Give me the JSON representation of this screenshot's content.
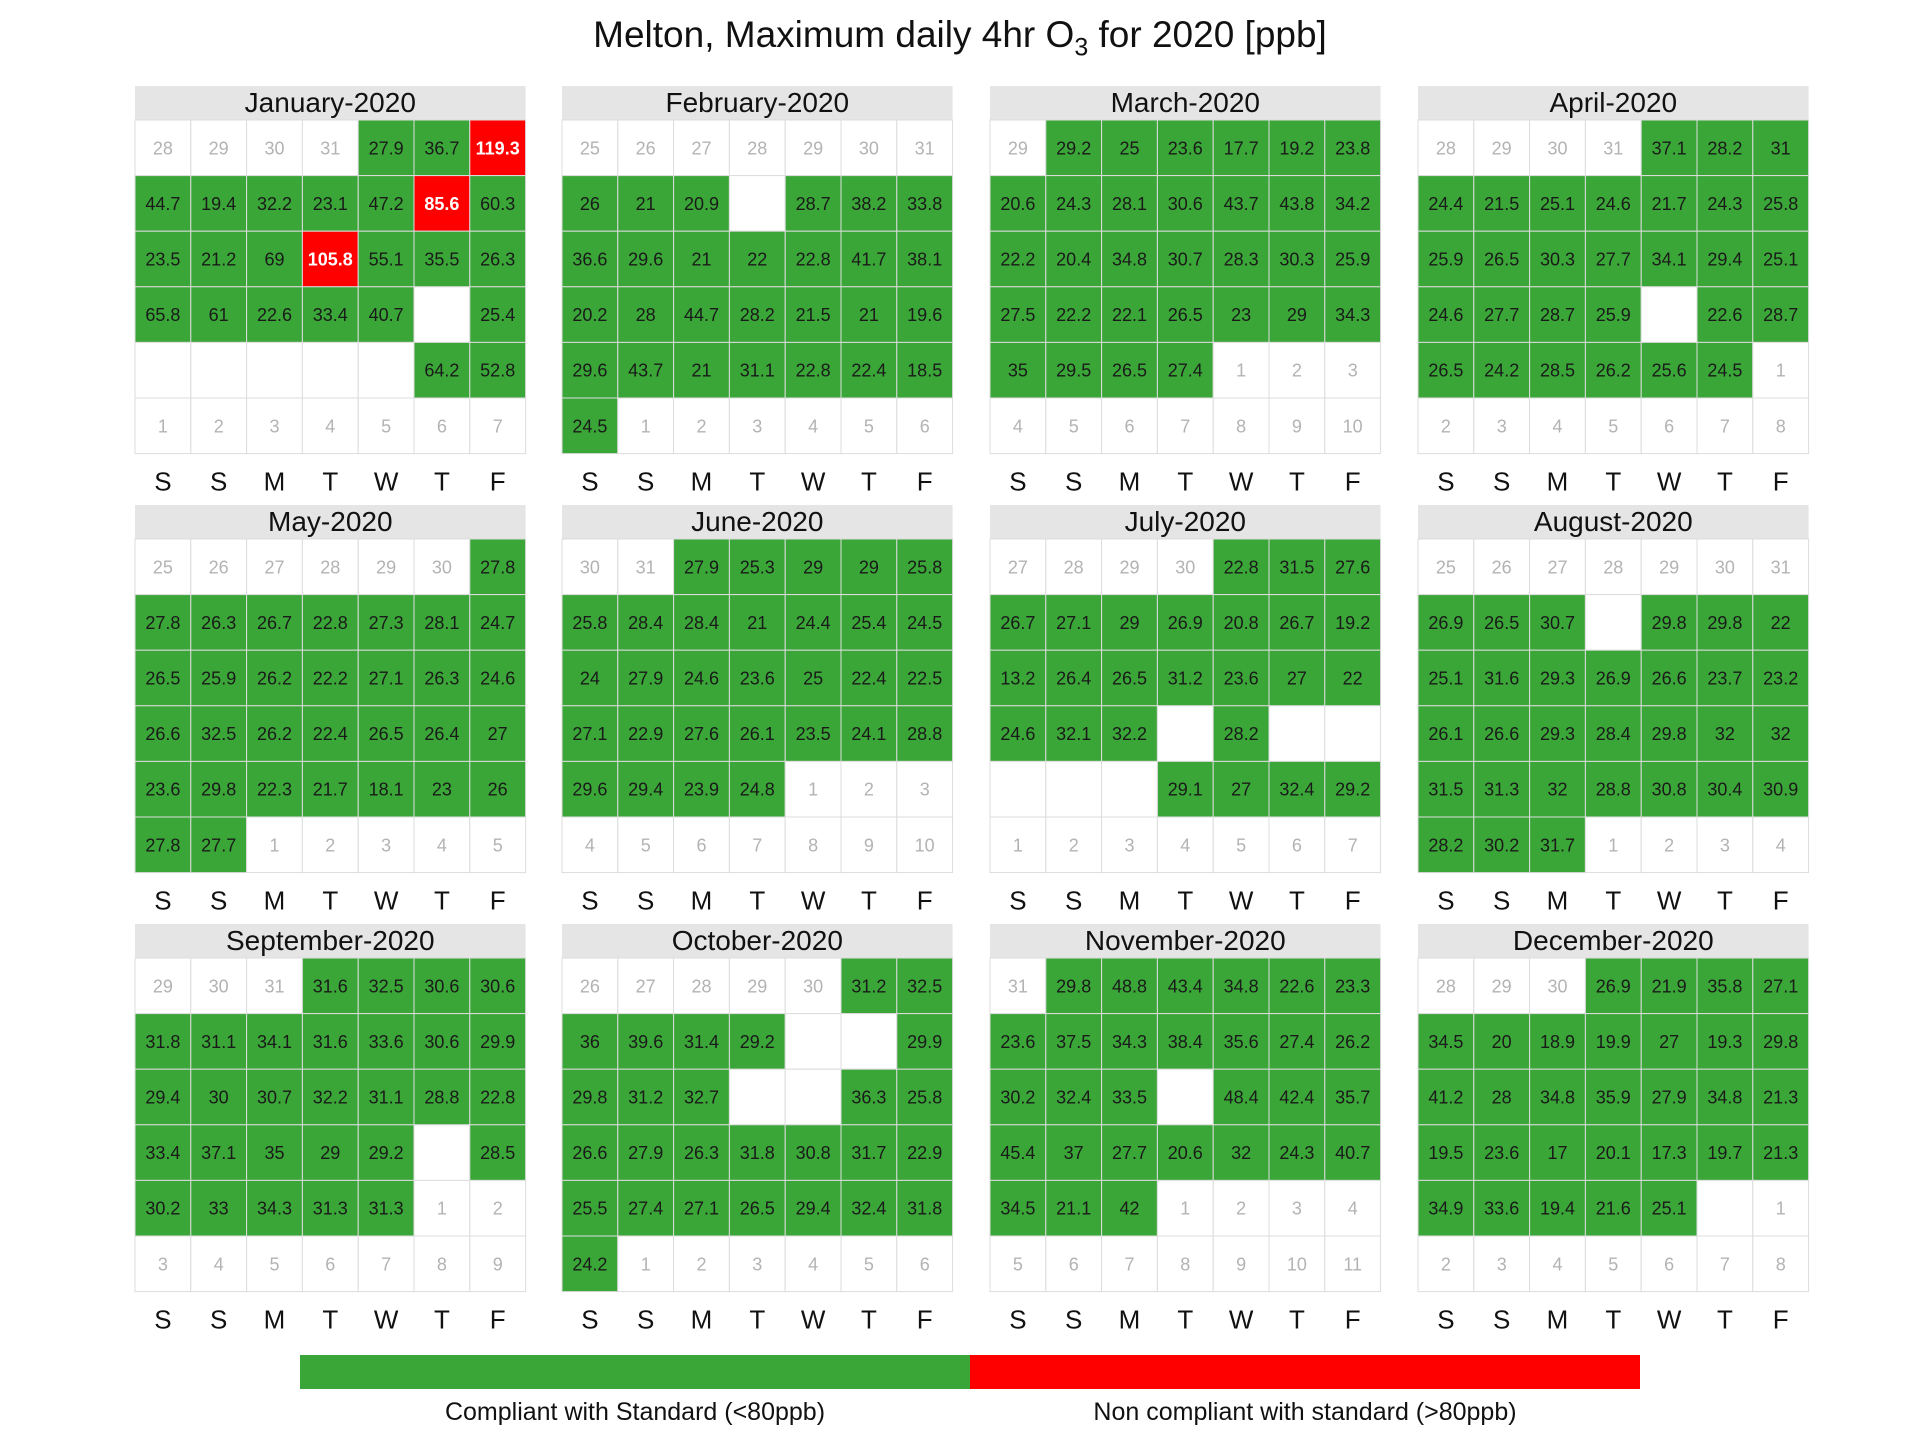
{
  "chart_data": {
    "type": "heatmap",
    "title": {
      "pre": "Melton, Maximum daily 4hr O",
      "sub": "3",
      "post": " for 2020 [ppb]"
    },
    "weekday_labels": [
      "S",
      "S",
      "M",
      "T",
      "W",
      "T",
      "F"
    ],
    "threshold": 80,
    "colors": {
      "compliant": "#3aa637",
      "noncompliant": "#ff0000",
      "header": "#e5e5e5",
      "pad_text": "#b3b3b3",
      "value_text": "#1a1a1a",
      "high_text": "#ffffff"
    },
    "legend": [
      {
        "label": "Compliant with Standard (<80ppb)",
        "color": "#3aa637"
      },
      {
        "label": "Non compliant with standard (>80ppb)",
        "color": "#ff0000"
      }
    ],
    "months": [
      {
        "name": "January-2020",
        "rows": [
          [
            "28",
            "29",
            "30",
            "31",
            27.9,
            36.7,
            119.3
          ],
          [
            44.7,
            19.4,
            32.2,
            23.1,
            47.2,
            85.6,
            60.3
          ],
          [
            23.5,
            21.2,
            69,
            105.8,
            55.1,
            35.5,
            26.3
          ],
          [
            65.8,
            61,
            22.6,
            33.4,
            40.7,
            null,
            25.4
          ],
          [
            null,
            null,
            null,
            null,
            null,
            64.2,
            52.8
          ],
          [
            "1",
            "2",
            "3",
            "4",
            "5",
            "6",
            "7"
          ]
        ]
      },
      {
        "name": "February-2020",
        "rows": [
          [
            "25",
            "26",
            "27",
            "28",
            "29",
            "30",
            "31"
          ],
          [
            26,
            21,
            20.9,
            null,
            28.7,
            38.2,
            33.8
          ],
          [
            36.6,
            29.6,
            21,
            22,
            22.8,
            41.7,
            38.1
          ],
          [
            20.2,
            28,
            44.7,
            28.2,
            21.5,
            21,
            19.6
          ],
          [
            29.6,
            43.7,
            21,
            31.1,
            22.8,
            22.4,
            18.5
          ],
          [
            24.5,
            "1",
            "2",
            "3",
            "4",
            "5",
            "6"
          ]
        ]
      },
      {
        "name": "March-2020",
        "rows": [
          [
            "29",
            29.2,
            25,
            23.6,
            17.7,
            19.2,
            23.8
          ],
          [
            20.6,
            24.3,
            28.1,
            30.6,
            43.7,
            43.8,
            34.2
          ],
          [
            22.2,
            20.4,
            34.8,
            30.7,
            28.3,
            30.3,
            25.9
          ],
          [
            27.5,
            22.2,
            22.1,
            26.5,
            23,
            29,
            34.3
          ],
          [
            35,
            29.5,
            26.5,
            27.4,
            "1",
            "2",
            "3"
          ],
          [
            "4",
            "5",
            "6",
            "7",
            "8",
            "9",
            "10"
          ]
        ]
      },
      {
        "name": "April-2020",
        "rows": [
          [
            "28",
            "29",
            "30",
            "31",
            37.1,
            28.2,
            31
          ],
          [
            24.4,
            21.5,
            25.1,
            24.6,
            21.7,
            24.3,
            25.8
          ],
          [
            25.9,
            26.5,
            30.3,
            27.7,
            34.1,
            29.4,
            25.1
          ],
          [
            24.6,
            27.7,
            28.7,
            25.9,
            null,
            22.6,
            28.7
          ],
          [
            26.5,
            24.2,
            28.5,
            26.2,
            25.6,
            24.5,
            "1"
          ],
          [
            "2",
            "3",
            "4",
            "5",
            "6",
            "7",
            "8"
          ]
        ]
      },
      {
        "name": "May-2020",
        "rows": [
          [
            "25",
            "26",
            "27",
            "28",
            "29",
            "30",
            27.8
          ],
          [
            27.8,
            26.3,
            26.7,
            22.8,
            27.3,
            28.1,
            24.7
          ],
          [
            26.5,
            25.9,
            26.2,
            22.2,
            27.1,
            26.3,
            24.6
          ],
          [
            26.6,
            32.5,
            26.2,
            22.4,
            26.5,
            26.4,
            27
          ],
          [
            23.6,
            29.8,
            22.3,
            21.7,
            18.1,
            23,
            26
          ],
          [
            27.8,
            27.7,
            "1",
            "2",
            "3",
            "4",
            "5"
          ]
        ]
      },
      {
        "name": "June-2020",
        "rows": [
          [
            "30",
            "31",
            27.9,
            25.3,
            29,
            29,
            25.8
          ],
          [
            25.8,
            28.4,
            28.4,
            21,
            24.4,
            25.4,
            24.5
          ],
          [
            24,
            27.9,
            24.6,
            23.6,
            25,
            22.4,
            22.5
          ],
          [
            27.1,
            22.9,
            27.6,
            26.1,
            23.5,
            24.1,
            28.8
          ],
          [
            29.6,
            29.4,
            23.9,
            24.8,
            "1",
            "2",
            "3"
          ],
          [
            "4",
            "5",
            "6",
            "7",
            "8",
            "9",
            "10"
          ]
        ]
      },
      {
        "name": "July-2020",
        "rows": [
          [
            "27",
            "28",
            "29",
            "30",
            22.8,
            31.5,
            27.6
          ],
          [
            26.7,
            27.1,
            29,
            26.9,
            20.8,
            26.7,
            19.2
          ],
          [
            13.2,
            26.4,
            26.5,
            31.2,
            23.6,
            27,
            22
          ],
          [
            24.6,
            32.1,
            32.2,
            null,
            28.2,
            null,
            null
          ],
          [
            null,
            null,
            null,
            29.1,
            27,
            32.4,
            29.2
          ],
          [
            "1",
            "2",
            "3",
            "4",
            "5",
            "6",
            "7"
          ]
        ]
      },
      {
        "name": "August-2020",
        "rows": [
          [
            "25",
            "26",
            "27",
            "28",
            "29",
            "30",
            "31"
          ],
          [
            26.9,
            26.5,
            30.7,
            null,
            29.8,
            29.8,
            22
          ],
          [
            25.1,
            31.6,
            29.3,
            26.9,
            26.6,
            23.7,
            23.2
          ],
          [
            26.1,
            26.6,
            29.3,
            28.4,
            29.8,
            32,
            32
          ],
          [
            31.5,
            31.3,
            32,
            28.8,
            30.8,
            30.4,
            30.9
          ],
          [
            28.2,
            30.2,
            31.7,
            "1",
            "2",
            "3",
            "4"
          ]
        ]
      },
      {
        "name": "September-2020",
        "rows": [
          [
            "29",
            "30",
            "31",
            31.6,
            32.5,
            30.6,
            30.6
          ],
          [
            31.8,
            31.1,
            34.1,
            31.6,
            33.6,
            30.6,
            29.9
          ],
          [
            29.4,
            30,
            30.7,
            32.2,
            31.1,
            28.8,
            22.8
          ],
          [
            33.4,
            37.1,
            35,
            29,
            29.2,
            null,
            28.5
          ],
          [
            30.2,
            33,
            34.3,
            31.3,
            31.3,
            "1",
            "2"
          ],
          [
            "3",
            "4",
            "5",
            "6",
            "7",
            "8",
            "9"
          ]
        ]
      },
      {
        "name": "October-2020",
        "rows": [
          [
            "26",
            "27",
            "28",
            "29",
            "30",
            31.2,
            32.5
          ],
          [
            36,
            39.6,
            31.4,
            29.2,
            null,
            null,
            29.9
          ],
          [
            29.8,
            31.2,
            32.7,
            null,
            null,
            36.3,
            25.8
          ],
          [
            26.6,
            27.9,
            26.3,
            31.8,
            30.8,
            31.7,
            22.9
          ],
          [
            25.5,
            27.4,
            27.1,
            26.5,
            29.4,
            32.4,
            31.8
          ],
          [
            24.2,
            "1",
            "2",
            "3",
            "4",
            "5",
            "6"
          ]
        ]
      },
      {
        "name": "November-2020",
        "rows": [
          [
            "31",
            29.8,
            48.8,
            43.4,
            34.8,
            22.6,
            23.3
          ],
          [
            23.6,
            37.5,
            34.3,
            38.4,
            35.6,
            27.4,
            26.2
          ],
          [
            30.2,
            32.4,
            33.5,
            null,
            48.4,
            42.4,
            35.7
          ],
          [
            45.4,
            37,
            27.7,
            20.6,
            32,
            24.3,
            40.7
          ],
          [
            34.5,
            21.1,
            42,
            "1",
            "2",
            "3",
            "4"
          ],
          [
            "5",
            "6",
            "7",
            "8",
            "9",
            "10",
            "11"
          ]
        ]
      },
      {
        "name": "December-2020",
        "rows": [
          [
            "28",
            "29",
            "30",
            26.9,
            21.9,
            35.8,
            27.1
          ],
          [
            34.5,
            20,
            18.9,
            19.9,
            27,
            19.3,
            29.8
          ],
          [
            41.2,
            28,
            34.8,
            35.9,
            27.9,
            34.8,
            21.3
          ],
          [
            19.5,
            23.6,
            17,
            20.1,
            17.3,
            19.7,
            21.3
          ],
          [
            34.9,
            33.6,
            19.4,
            21.6,
            25.1,
            null,
            "1"
          ],
          [
            "2",
            "3",
            "4",
            "5",
            "6",
            "7",
            "8"
          ]
        ]
      }
    ]
  }
}
